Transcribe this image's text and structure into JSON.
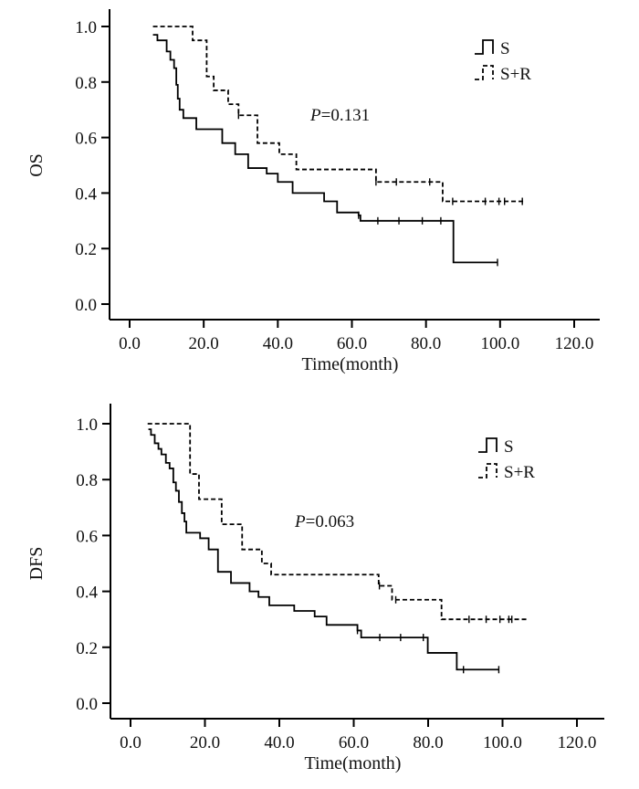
{
  "chart_data": [
    {
      "type": "line",
      "subtype": "kaplan-meier",
      "ylabel": "OS",
      "xlabel": "Time(month)",
      "xlim": [
        -5,
        127
      ],
      "ylim": [
        -0.05,
        1.05
      ],
      "xticks": [
        0,
        20,
        40,
        60,
        80,
        100,
        120
      ],
      "xtick_labels": [
        "0.0",
        "20.0",
        "40.0",
        "60.0",
        "80.0",
        "100.0",
        "120.0"
      ],
      "yticks": [
        0,
        0.2,
        0.4,
        0.6,
        0.8,
        1.0
      ],
      "ytick_labels": [
        "0.0",
        "0.2",
        "0.4",
        "0.6",
        "0.8",
        "1.0"
      ],
      "annotation": {
        "prefix": "P",
        "text": "=0.131"
      },
      "legend": {
        "position": "top-right",
        "entries": [
          "S",
          "S+R"
        ]
      },
      "series": [
        {
          "name": "S",
          "style": "solid",
          "steps": [
            [
              6.3,
              0.97
            ],
            [
              7.5,
              0.95
            ],
            [
              10,
              0.91
            ],
            [
              11,
              0.88
            ],
            [
              12,
              0.85
            ],
            [
              12.6,
              0.79
            ],
            [
              13,
              0.74
            ],
            [
              13.5,
              0.7
            ],
            [
              14.5,
              0.67
            ],
            [
              18,
              0.63
            ],
            [
              25,
              0.58
            ],
            [
              28.5,
              0.54
            ],
            [
              32,
              0.49
            ],
            [
              37,
              0.47
            ],
            [
              40,
              0.44
            ],
            [
              44,
              0.4
            ],
            [
              52.5,
              0.37
            ],
            [
              56,
              0.33
            ],
            [
              61.8,
              0.32
            ],
            [
              62.3,
              0.3
            ],
            [
              87.4,
              0.15
            ],
            [
              99.3,
              0.15
            ]
          ],
          "censored": [
            [
              61.8,
              0.32
            ],
            [
              67,
              0.3
            ],
            [
              72.7,
              0.3
            ],
            [
              79,
              0.3
            ],
            [
              84,
              0.3
            ],
            [
              99.3,
              0.15
            ]
          ]
        },
        {
          "name": "S+R",
          "style": "dashed",
          "steps": [
            [
              6.3,
              1.0
            ],
            [
              17,
              0.95
            ],
            [
              20.8,
              0.82
            ],
            [
              22.7,
              0.77
            ],
            [
              26.6,
              0.72
            ],
            [
              29.4,
              0.68
            ],
            [
              34.5,
              0.58
            ],
            [
              40.4,
              0.54
            ],
            [
              45,
              0.485
            ],
            [
              66.5,
              0.44
            ],
            [
              84.5,
              0.37
            ],
            [
              106.6,
              0.37
            ]
          ],
          "censored": [
            [
              29.4,
              0.68
            ],
            [
              66.5,
              0.44
            ],
            [
              72,
              0.44
            ],
            [
              81,
              0.44
            ],
            [
              87.2,
              0.37
            ],
            [
              96,
              0.37
            ],
            [
              99.7,
              0.37
            ],
            [
              101.2,
              0.37
            ],
            [
              106,
              0.37
            ]
          ]
        }
      ]
    },
    {
      "type": "line",
      "subtype": "kaplan-meier",
      "ylabel": "DFS",
      "xlabel": "Time(month)",
      "xlim": [
        -5,
        127
      ],
      "ylim": [
        -0.05,
        1.05
      ],
      "xticks": [
        0,
        20,
        40,
        60,
        80,
        100,
        120
      ],
      "xtick_labels": [
        "0.0",
        "20.0",
        "40.0",
        "60.0",
        "80.0",
        "100.0",
        "120.0"
      ],
      "yticks": [
        0,
        0.2,
        0.4,
        0.6,
        0.8,
        1.0
      ],
      "ytick_labels": [
        "0.0",
        "0.2",
        "0.4",
        "0.6",
        "0.8",
        "1.0"
      ],
      "annotation": {
        "prefix": "P",
        "text": "=0.063"
      },
      "legend": {
        "position": "top-right",
        "entries": [
          "S",
          "S+R"
        ]
      },
      "series": [
        {
          "name": "S",
          "style": "solid",
          "steps": [
            [
              4.8,
              0.98
            ],
            [
              5.5,
              0.96
            ],
            [
              6.5,
              0.93
            ],
            [
              7.5,
              0.91
            ],
            [
              8.3,
              0.89
            ],
            [
              9.5,
              0.86
            ],
            [
              10.5,
              0.84
            ],
            [
              11.5,
              0.79
            ],
            [
              12.2,
              0.76
            ],
            [
              13,
              0.72
            ],
            [
              13.8,
              0.68
            ],
            [
              14.5,
              0.65
            ],
            [
              15,
              0.61
            ],
            [
              18.7,
              0.59
            ],
            [
              21,
              0.55
            ],
            [
              23.5,
              0.47
            ],
            [
              27,
              0.43
            ],
            [
              32,
              0.4
            ],
            [
              34.4,
              0.38
            ],
            [
              37.3,
              0.35
            ],
            [
              44,
              0.33
            ],
            [
              49.5,
              0.31
            ],
            [
              52.7,
              0.28
            ],
            [
              61,
              0.26
            ],
            [
              62,
              0.235
            ],
            [
              79.9,
              0.18
            ],
            [
              87.7,
              0.12
            ],
            [
              99,
              0.12
            ]
          ],
          "censored": [
            [
              61,
              0.26
            ],
            [
              67,
              0.235
            ],
            [
              72.6,
              0.235
            ],
            [
              78.7,
              0.235
            ],
            [
              89.5,
              0.12
            ],
            [
              99,
              0.12
            ]
          ]
        },
        {
          "name": "S+R",
          "style": "dashed",
          "steps": [
            [
              4.6,
              1.0
            ],
            [
              16,
              0.82
            ],
            [
              18.4,
              0.73
            ],
            [
              24.5,
              0.64
            ],
            [
              30,
              0.55
            ],
            [
              35.3,
              0.5
            ],
            [
              37.8,
              0.46
            ],
            [
              66.7,
              0.42
            ],
            [
              70.3,
              0.37
            ],
            [
              83.6,
              0.3
            ],
            [
              106.6,
              0.3
            ]
          ],
          "censored": [
            [
              66.9,
              0.42
            ],
            [
              71.3,
              0.37
            ],
            [
              91,
              0.3
            ],
            [
              95.6,
              0.3
            ],
            [
              99.3,
              0.3
            ],
            [
              101.7,
              0.3
            ],
            [
              102.5,
              0.3
            ]
          ]
        }
      ]
    }
  ]
}
